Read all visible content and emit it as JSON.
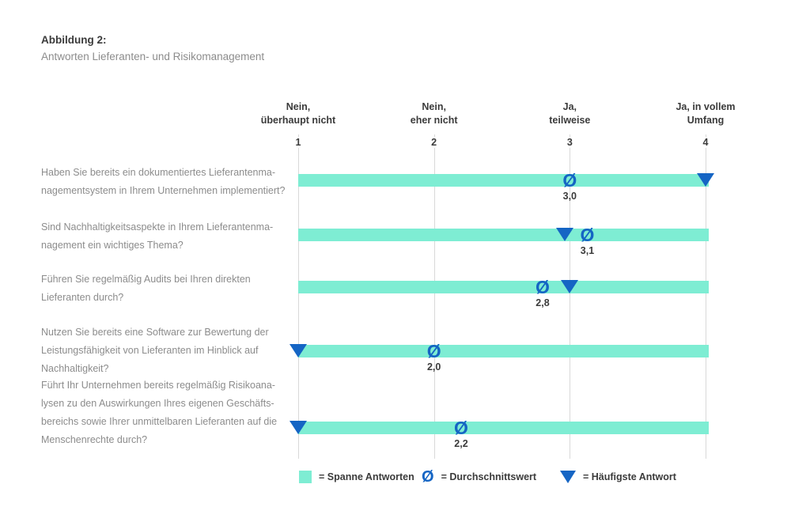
{
  "figure": {
    "title": "Abbildung 2:",
    "subtitle": "Antworten Lieferanten- und Risikomanagement"
  },
  "colors": {
    "bar_span": "#7eedd3",
    "marker": "#1565c4",
    "gridline": "#d9d9d9",
    "text_dark": "#3b3b3b",
    "text_gray": "#8c8c8c"
  },
  "chart_data": {
    "type": "bar",
    "variant": "horizontal-range-bars-with-mean-and-mode-markers",
    "title": "Abbildung 2: Antworten Lieferanten- und Risikomanagement",
    "x_axis": {
      "min": 1,
      "max": 4,
      "gridlines": true
    },
    "symbols": {
      "average": "Ø",
      "mode": "triangle-down",
      "span": "bar"
    },
    "scale": {
      "categories": [
        {
          "tick": "1",
          "value": 1,
          "lines": [
            "Nein,",
            "überhaupt nicht"
          ]
        },
        {
          "tick": "2",
          "value": 2,
          "lines": [
            "Nein,",
            "eher nicht"
          ]
        },
        {
          "tick": "3",
          "value": 3,
          "lines": [
            "Ja,",
            "teilweise"
          ]
        },
        {
          "tick": "4",
          "value": 4,
          "lines": [
            "Ja, in vollem",
            "Umfang"
          ]
        }
      ]
    },
    "rows": [
      {
        "question_lines": [
          "Haben Sie bereits ein dokumentiertes Lieferantenma-",
          "nagementsystem in Ihrem Unternehmen implementiert?"
        ],
        "span": [
          1,
          4
        ],
        "mean": 3.0,
        "mean_label": "3,0",
        "mode": 4
      },
      {
        "question_lines": [
          "Sind Nachhaltigkeitsaspekte in Ihrem Lieferantenma-",
          "nagement ein wichtiges Thema?"
        ],
        "span": [
          1,
          4
        ],
        "mean": 3.1,
        "mean_label": "3,1",
        "mode": 3
      },
      {
        "question_lines": [
          "Führen Sie regelmäßig Audits bei Ihren direkten",
          "Lieferanten durch?"
        ],
        "span": [
          1,
          4
        ],
        "mean": 2.8,
        "mean_label": "2,8",
        "mode": 3
      },
      {
        "question_lines": [
          "Nutzen Sie bereits eine Software zur Bewertung der",
          "Leistungsfähigkeit von Lieferanten im Hinblick auf",
          "Nachhaltigkeit?"
        ],
        "span": [
          1,
          4
        ],
        "mean": 2.0,
        "mean_label": "2,0",
        "mode": 1
      },
      {
        "question_lines": [
          "Führt Ihr Unternehmen bereits regelmäßig Risikoana-",
          "lysen zu den Auswirkungen Ihres eigenen Geschäfts-",
          "bereichs sowie Ihrer unmittelbaren Lieferanten auf die",
          "Menschenrechte durch?"
        ],
        "span": [
          1,
          4
        ],
        "mean": 2.2,
        "mean_label": "2,2",
        "mode": 1
      }
    ],
    "legend": [
      {
        "symbol": "bar-swatch",
        "label": "= Spanne Antworten"
      },
      {
        "symbol": "Ø",
        "label": "= Durchschnittswert"
      },
      {
        "symbol": "triangle-down",
        "label": "= Häufigste Antwort"
      }
    ]
  }
}
